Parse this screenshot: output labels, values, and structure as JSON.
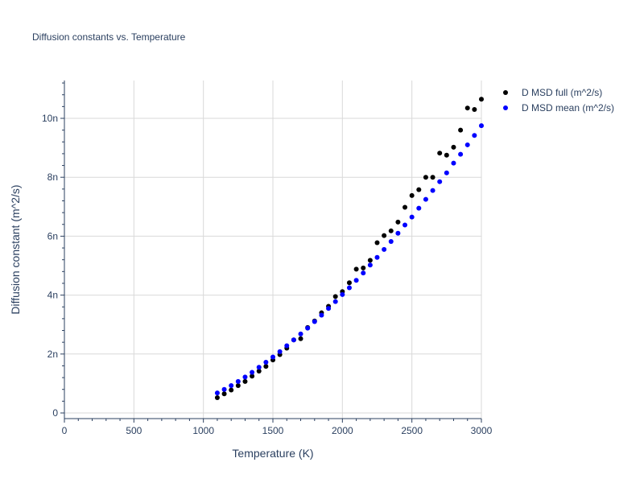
{
  "chart_data": {
    "type": "scatter",
    "title": "Diffusion constants vs. Temperature",
    "xlabel": "Temperature (K)",
    "ylabel": "Diffusion constant (m^2/s)",
    "xlim": [
      0,
      3000
    ],
    "ylim": [
      -2e-10,
      1.13e-08
    ],
    "x_ticks": [
      0,
      500,
      1000,
      1500,
      2000,
      2500,
      3000
    ],
    "x_tick_labels": [
      "0",
      "500",
      "1000",
      "1500",
      "2000",
      "2500",
      "3000"
    ],
    "y_ticks": [
      0,
      2e-09,
      4e-09,
      6e-09,
      8e-09,
      1e-08
    ],
    "y_tick_labels": [
      "0",
      "2n",
      "4n",
      "6n",
      "8n",
      "10n"
    ],
    "grid": true,
    "legend_position": "top-right",
    "x": [
      1100,
      1150,
      1200,
      1250,
      1300,
      1350,
      1400,
      1450,
      1500,
      1550,
      1600,
      1650,
      1700,
      1750,
      1800,
      1850,
      1900,
      1950,
      2000,
      2050,
      2100,
      2150,
      2200,
      2250,
      2300,
      2350,
      2400,
      2450,
      2500,
      2550,
      2600,
      2650,
      2700,
      2750,
      2800,
      2850,
      2900,
      2950,
      3000
    ],
    "series": [
      {
        "name": "D MSD full (m^2/s)",
        "color": "#000000",
        "values": [
          5.2e-10,
          6.5e-10,
          7.8e-10,
          9.3e-10,
          1.07e-09,
          1.25e-09,
          1.42e-09,
          1.58e-09,
          1.8e-09,
          1.98e-09,
          2.2e-09,
          2.48e-09,
          2.52e-09,
          2.9e-09,
          3.12e-09,
          3.4e-09,
          3.62e-09,
          3.95e-09,
          4.12e-09,
          4.42e-09,
          4.88e-09,
          4.92e-09,
          5.18e-09,
          5.78e-09,
          6.02e-09,
          6.18e-09,
          6.48e-09,
          6.98e-09,
          7.38e-09,
          7.58e-09,
          8e-09,
          8e-09,
          8.82e-09,
          8.75e-09,
          9.02e-09,
          9.6e-09,
          1.035e-08,
          1.03e-08,
          1.065e-08
        ]
      },
      {
        "name": "D MSD mean (m^2/s)",
        "color": "#0000ff",
        "values": [
          6.8e-10,
          8e-10,
          9.3e-10,
          1.07e-09,
          1.22e-09,
          1.38e-09,
          1.55e-09,
          1.72e-09,
          1.9e-09,
          2.08e-09,
          2.28e-09,
          2.48e-09,
          2.68e-09,
          2.88e-09,
          3.1e-09,
          3.32e-09,
          3.55e-09,
          3.78e-09,
          4.02e-09,
          4.25e-09,
          4.5e-09,
          4.75e-09,
          5.02e-09,
          5.28e-09,
          5.55e-09,
          5.82e-09,
          6.1e-09,
          6.38e-09,
          6.65e-09,
          6.95e-09,
          7.25e-09,
          7.55e-09,
          7.85e-09,
          8.15e-09,
          8.48e-09,
          8.78e-09,
          9.1e-09,
          9.42e-09,
          9.75e-09
        ]
      }
    ]
  }
}
